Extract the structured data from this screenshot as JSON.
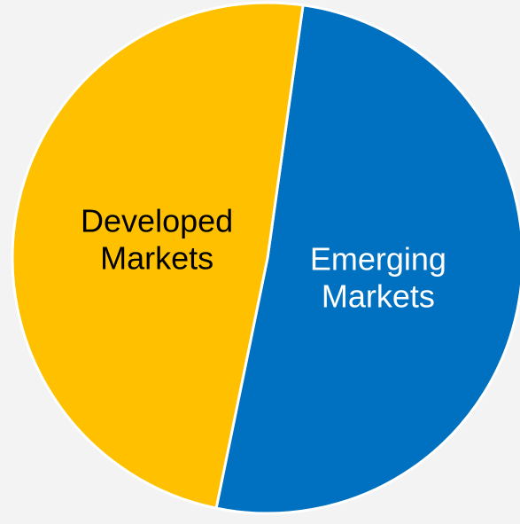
{
  "chart_data": {
    "type": "pie",
    "title": "",
    "slices": [
      {
        "label_lines": [
          "Emerging",
          "Markets"
        ],
        "value": 51,
        "color": "#0070c0",
        "label_color": "#ffffff"
      },
      {
        "label_lines": [
          "Developed",
          "Markets"
        ],
        "value": 49,
        "color": "#ffc000",
        "label_color": "#000000"
      }
    ],
    "start_angle_deg": 8,
    "direction": "clockwise",
    "legend": "none"
  }
}
